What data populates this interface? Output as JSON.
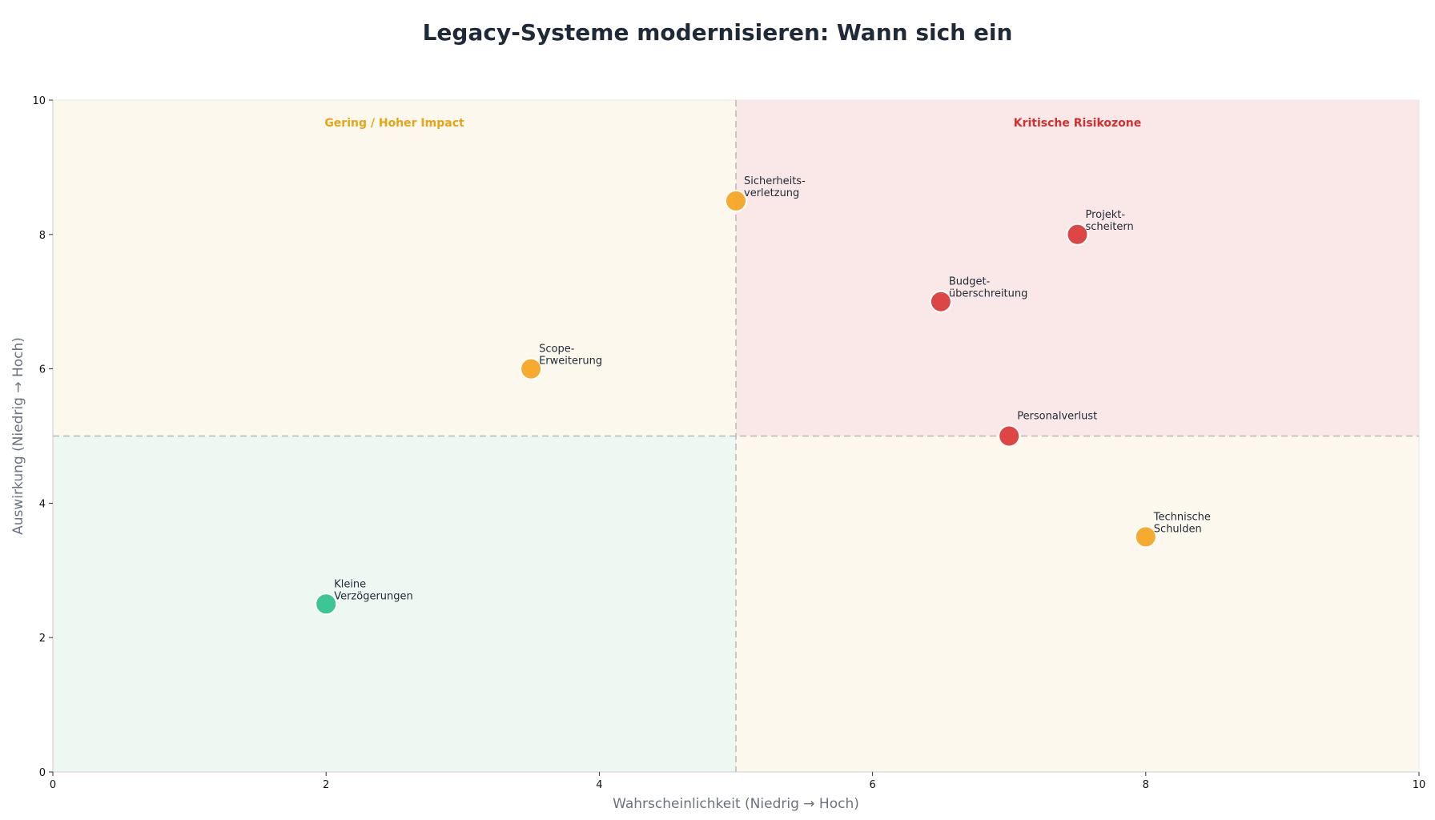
{
  "chart_data": {
    "type": "scatter",
    "title": "Legacy-Systeme modernisieren: Wann sich ein",
    "xlabel": "Wahrscheinlichkeit (Niedrig → Hoch)",
    "ylabel": "Auswirkung (Niedrig → Hoch)",
    "xlim": [
      0,
      10
    ],
    "ylim": [
      0,
      10
    ],
    "xticks": [
      "0",
      "2",
      "4",
      "6",
      "8",
      "10"
    ],
    "yticks": [
      "0",
      "2",
      "4",
      "6",
      "8",
      "10"
    ],
    "grid": false,
    "thresholds": {
      "x": 5,
      "y": 5
    },
    "quadrants": [
      {
        "name": "low-low",
        "x": [
          0,
          5
        ],
        "y": [
          0,
          5
        ],
        "color": "#edf8f3",
        "label": ""
      },
      {
        "name": "low-high",
        "x": [
          0,
          5
        ],
        "y": [
          5,
          10
        ],
        "color": "#fdf8ed",
        "label": "Gering / Hoher Impact",
        "label_color": "#e6a417"
      },
      {
        "name": "high-low",
        "x": [
          5,
          10
        ],
        "y": [
          0,
          5
        ],
        "color": "#fdf8ed",
        "label": ""
      },
      {
        "name": "high-high",
        "x": [
          5,
          10
        ],
        "y": [
          5,
          10
        ],
        "color": "#fae8e8",
        "label": "Kritische Risikozone",
        "label_color": "#d42f2f"
      }
    ],
    "points": [
      {
        "label_lines": [
          "Sicherheits-",
          "verletzung"
        ],
        "x": 5.0,
        "y": 8.5,
        "color": "#f5a524"
      },
      {
        "label_lines": [
          "Projekt-",
          "scheitern"
        ],
        "x": 7.5,
        "y": 8.0,
        "color": "#dc3c3c"
      },
      {
        "label_lines": [
          "Budget-",
          "überschreitung"
        ],
        "x": 6.5,
        "y": 7.0,
        "color": "#dc3c3c"
      },
      {
        "label_lines": [
          "Scope-",
          "Erweiterung"
        ],
        "x": 3.5,
        "y": 6.0,
        "color": "#f5a524"
      },
      {
        "label_lines": [
          "Personalverlust"
        ],
        "x": 7.0,
        "y": 5.0,
        "color": "#dc3c3c"
      },
      {
        "label_lines": [
          "Technische",
          "Schulden"
        ],
        "x": 8.0,
        "y": 3.5,
        "color": "#f5a524"
      },
      {
        "label_lines": [
          "Kleine",
          "Verzögerungen"
        ],
        "x": 2.0,
        "y": 2.5,
        "color": "#34c38f"
      }
    ]
  }
}
